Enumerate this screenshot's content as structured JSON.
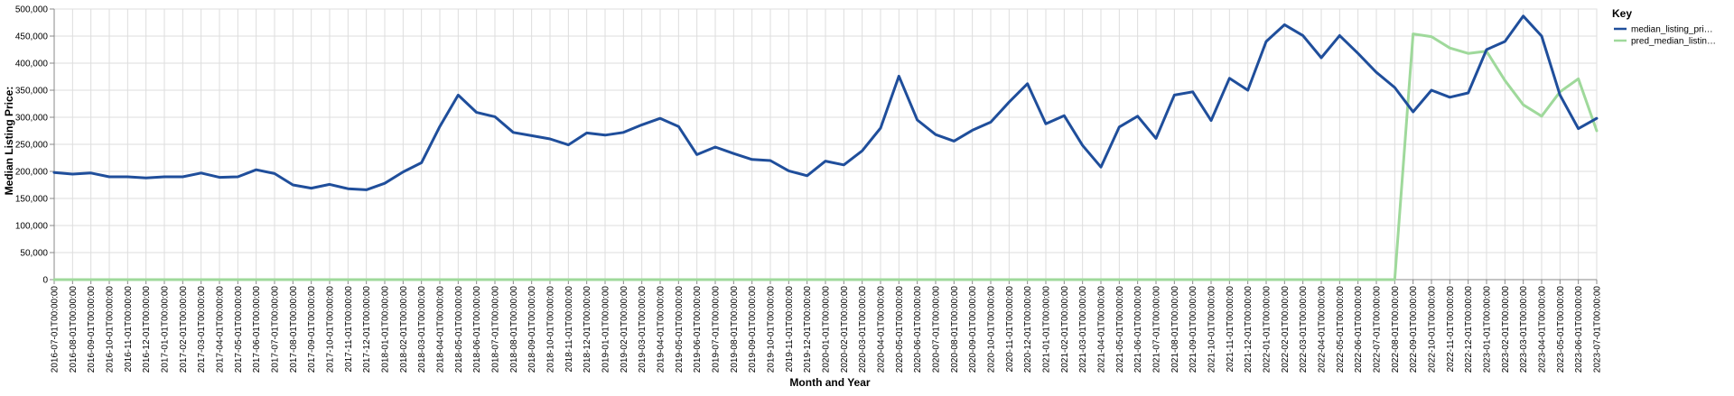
{
  "chart_data": {
    "type": "line",
    "title": "",
    "xlabel": "Month and Year",
    "ylabel": "Median Listing Price:",
    "ylim": [
      0,
      500000
    ],
    "yticks": [
      "0",
      "50,000",
      "100,000",
      "150,000",
      "200,000",
      "250,000",
      "300,000",
      "350,000",
      "400,000",
      "450,000",
      "500,000"
    ],
    "grid": true,
    "legend": {
      "title": "Key",
      "placement": "top-right",
      "entries": [
        {
          "label": "median_listing_pri…",
          "color": "#1f4e9b"
        },
        {
          "label": "pred_median_listin…",
          "color": "#9fd99b"
        }
      ]
    },
    "categories": [
      "2016-07-01T00:00:00",
      "2016-08-01T00:00:00",
      "2016-09-01T00:00:00",
      "2016-10-01T00:00:00",
      "2016-11-01T00:00:00",
      "2016-12-01T00:00:00",
      "2017-01-01T00:00:00",
      "2017-02-01T00:00:00",
      "2017-03-01T00:00:00",
      "2017-04-01T00:00:00",
      "2017-05-01T00:00:00",
      "2017-06-01T00:00:00",
      "2017-07-01T00:00:00",
      "2017-08-01T00:00:00",
      "2017-09-01T00:00:00",
      "2017-10-01T00:00:00",
      "2017-11-01T00:00:00",
      "2017-12-01T00:00:00",
      "2018-01-01T00:00:00",
      "2018-02-01T00:00:00",
      "2018-03-01T00:00:00",
      "2018-04-01T00:00:00",
      "2018-05-01T00:00:00",
      "2018-06-01T00:00:00",
      "2018-07-01T00:00:00",
      "2018-08-01T00:00:00",
      "2018-09-01T00:00:00",
      "2018-10-01T00:00:00",
      "2018-11-01T00:00:00",
      "2018-12-01T00:00:00",
      "2019-01-01T00:00:00",
      "2019-02-01T00:00:00",
      "2019-03-01T00:00:00",
      "2019-04-01T00:00:00",
      "2019-05-01T00:00:00",
      "2019-06-01T00:00:00",
      "2019-07-01T00:00:00",
      "2019-08-01T00:00:00",
      "2019-09-01T00:00:00",
      "2019-10-01T00:00:00",
      "2019-11-01T00:00:00",
      "2019-12-01T00:00:00",
      "2020-01-01T00:00:00",
      "2020-02-01T00:00:00",
      "2020-03-01T00:00:00",
      "2020-04-01T00:00:00",
      "2020-05-01T00:00:00",
      "2020-06-01T00:00:00",
      "2020-07-01T00:00:00",
      "2020-08-01T00:00:00",
      "2020-09-01T00:00:00",
      "2020-10-01T00:00:00",
      "2020-11-01T00:00:00",
      "2020-12-01T00:00:00",
      "2021-01-01T00:00:00",
      "2021-02-01T00:00:00",
      "2021-03-01T00:00:00",
      "2021-04-01T00:00:00",
      "2021-05-01T00:00:00",
      "2021-06-01T00:00:00",
      "2021-07-01T00:00:00",
      "2021-08-01T00:00:00",
      "2021-09-01T00:00:00",
      "2021-10-01T00:00:00",
      "2021-11-01T00:00:00",
      "2021-12-01T00:00:00",
      "2022-01-01T00:00:00",
      "2022-02-01T00:00:00",
      "2022-03-01T00:00:00",
      "2022-04-01T00:00:00",
      "2022-05-01T00:00:00",
      "2022-06-01T00:00:00",
      "2022-07-01T00:00:00",
      "2022-08-01T00:00:00",
      "2022-09-01T00:00:00",
      "2022-10-01T00:00:00",
      "2022-11-01T00:00:00",
      "2022-12-01T00:00:00",
      "2023-01-01T00:00:00",
      "2023-02-01T00:00:00",
      "2023-03-01T00:00:00",
      "2023-04-01T00:00:00",
      "2023-05-01T00:00:00",
      "2023-06-01T00:00:00",
      "2023-07-01T00:00:00"
    ],
    "series": [
      {
        "name": "median_listing_pri…",
        "color": "#1f4e9b",
        "values": [
          198000,
          195000,
          197000,
          190000,
          190000,
          188000,
          190000,
          190000,
          197000,
          189000,
          190000,
          203000,
          196000,
          175000,
          169000,
          176000,
          168000,
          166000,
          178000,
          199000,
          216000,
          283000,
          341000,
          309000,
          301000,
          272000,
          266000,
          260000,
          249000,
          271000,
          267000,
          272000,
          286000,
          298000,
          283000,
          231000,
          245000,
          233000,
          222000,
          220000,
          201000,
          192000,
          219000,
          212000,
          238000,
          280000,
          376000,
          295000,
          268000,
          256000,
          276000,
          291000,
          328000,
          362000,
          288000,
          303000,
          248000,
          208000,
          282000,
          302000,
          261000,
          341000,
          347000,
          294000,
          372000,
          350000,
          440000,
          471000,
          451000,
          410000,
          451000,
          418000,
          383000,
          355000,
          310000,
          350000,
          337000,
          345000,
          425000,
          440000,
          487000,
          450000,
          341000,
          279000,
          298000
        ]
      },
      {
        "name": "pred_median_listin…",
        "color": "#9fd99b",
        "values": [
          0,
          0,
          0,
          0,
          0,
          0,
          0,
          0,
          0,
          0,
          0,
          0,
          0,
          0,
          0,
          0,
          0,
          0,
          0,
          0,
          0,
          0,
          0,
          0,
          0,
          0,
          0,
          0,
          0,
          0,
          0,
          0,
          0,
          0,
          0,
          0,
          0,
          0,
          0,
          0,
          0,
          0,
          0,
          0,
          0,
          0,
          0,
          0,
          0,
          0,
          0,
          0,
          0,
          0,
          0,
          0,
          0,
          0,
          0,
          0,
          0,
          0,
          0,
          0,
          0,
          0,
          0,
          0,
          0,
          0,
          0,
          0,
          0,
          0,
          454000,
          449000,
          428000,
          418000,
          422000,
          368000,
          323000,
          302000,
          347000,
          371000,
          275000
        ]
      }
    ]
  }
}
